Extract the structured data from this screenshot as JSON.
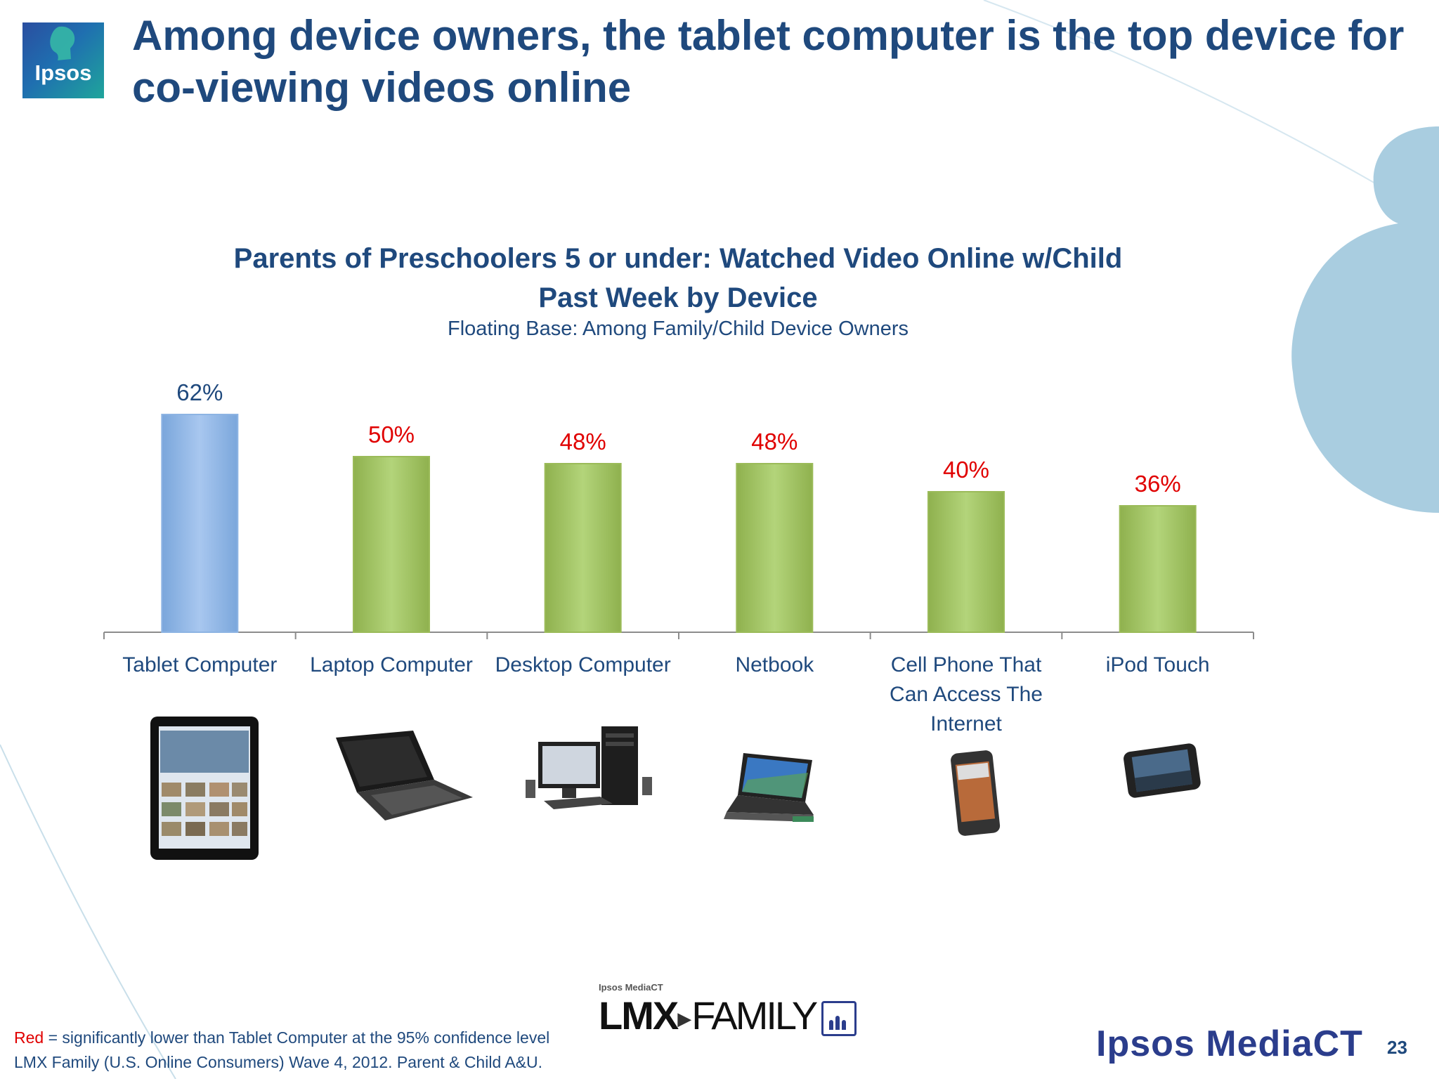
{
  "header": {
    "logo_text": "Ipsos",
    "title": "Among device owners, the tablet computer is the top device for co-viewing videos online"
  },
  "chart_data": {
    "type": "bar",
    "title": "Parents of Preschoolers 5 or under: Watched Video Online w/Child Past Week by Device",
    "subtitle": "Floating Base: Among Family/Child Device Owners",
    "categories": [
      "Tablet Computer",
      "Laptop Computer",
      "Desktop Computer",
      "Netbook",
      "Cell Phone That Can Access The Internet",
      "iPod Touch"
    ],
    "category_lines": [
      [
        "Tablet Computer"
      ],
      [
        "Laptop Computer"
      ],
      [
        "Desktop Computer"
      ],
      [
        "Netbook"
      ],
      [
        "Cell Phone That",
        "Can Access The",
        "Internet"
      ],
      [
        "iPod Touch"
      ]
    ],
    "values": [
      62,
      50,
      48,
      48,
      40,
      36
    ],
    "data_labels": [
      "62%",
      "50%",
      "48%",
      "48%",
      "40%",
      "36%"
    ],
    "bar_colors": [
      "#8db4e3",
      "#9bbb59",
      "#9bbb59",
      "#9bbb59",
      "#9bbb59",
      "#9bbb59"
    ],
    "label_colors": [
      "#1f497d",
      "#e00000",
      "#e00000",
      "#e00000",
      "#e00000",
      "#e00000"
    ],
    "ylim": [
      0,
      100
    ],
    "grid": false,
    "legend": "none",
    "device_icons": [
      "tablet-icon",
      "laptop-icon",
      "desktop-icon",
      "netbook-icon",
      "smartphone-icon",
      "ipod-touch-icon"
    ]
  },
  "branding": {
    "lmx_small": "Ipsos MediaCT",
    "lmx_bold": "LMX",
    "lmx_family": "FAMILY",
    "company": "Ipsos MediaCT",
    "page_number": "23"
  },
  "footnotes": {
    "red_word": "Red",
    "line1_rest": " = significantly lower than Tablet Computer at the 95% confidence level",
    "line2": "LMX Family (U.S. Online Consumers) Wave 4, 2012.  Parent & Child A&U."
  },
  "colors": {
    "title": "#1f497d",
    "highlight_red": "#e00000",
    "deco_blue": "#a9cde0"
  }
}
